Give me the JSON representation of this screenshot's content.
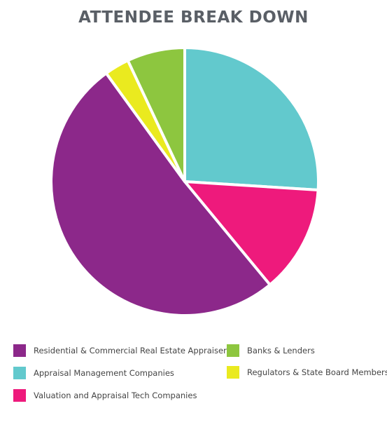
{
  "chart_data": {
    "type": "pie",
    "title": "ATTENDEE BREAK DOWN",
    "legend_position": "bottom",
    "slices": [
      {
        "label": "Appraisal Management Companies",
        "value": 26,
        "color": "#62c9cd"
      },
      {
        "label": "Valuation and Appraisal Tech Companies",
        "value": 13,
        "color": "#ee1a7c"
      },
      {
        "label": "Residential & Commercial Real Estate Appraisers",
        "value": 51,
        "color": "#8c288a"
      },
      {
        "label": "Regulators & State Board Members",
        "value": 3,
        "color": "#eaea1f"
      },
      {
        "label": "Banks & Lenders",
        "value": 7,
        "color": "#8dc63f"
      }
    ]
  },
  "legend": [
    {
      "label": "Residential & Commercial Real Estate Appraisers",
      "color": "#8c288a"
    },
    {
      "label": "Appraisal Management Companies",
      "color": "#62c9cd"
    },
    {
      "label": "Valuation and Appraisal Tech Companies",
      "color": "#ee1a7c"
    },
    {
      "label": "Banks & Lenders",
      "color": "#8dc63f"
    },
    {
      "label": "Regulators & State Board Members",
      "color": "#eaea1f"
    }
  ]
}
